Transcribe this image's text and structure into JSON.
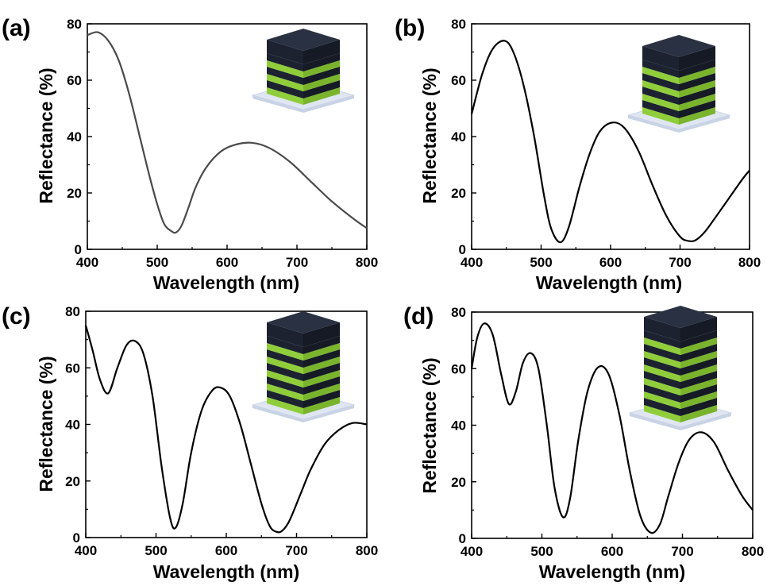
{
  "colors": {
    "curve_a": "#4a4a4a",
    "curve": "#000000",
    "stack_dark": "#1c2230",
    "stack_green": "#8fce3a",
    "substrate": "#dfe6f2"
  },
  "chart_data": [
    {
      "type": "line",
      "panel": "(a)",
      "xlabel": "Wavelength (nm)",
      "ylabel": "Reflectance (%)",
      "xlim": [
        400,
        800
      ],
      "ylim": [
        0,
        80
      ],
      "xticks": [
        "400",
        "500",
        "600",
        "700",
        "800"
      ],
      "yticks": [
        "0",
        "20",
        "40",
        "60",
        "80"
      ],
      "inset": "multilayer stack, 3 green layers",
      "layers": 3,
      "series": [
        {
          "x": [
            400,
            415,
            430,
            445,
            460,
            475,
            490,
            500,
            510,
            520,
            527,
            535,
            545,
            555,
            570,
            590,
            610,
            635,
            660,
            690,
            720,
            750,
            780,
            800
          ],
          "y": [
            76,
            77,
            74,
            67,
            55,
            40,
            25,
            16,
            9,
            6.5,
            6,
            8.5,
            15,
            22,
            29,
            34.5,
            37,
            37.8,
            36,
            31,
            24,
            17,
            11,
            7.5
          ]
        }
      ]
    },
    {
      "type": "line",
      "panel": "(b)",
      "xlabel": "Wavelength (nm)",
      "ylabel": "Reflectance (%)",
      "xlim": [
        400,
        800
      ],
      "ylim": [
        0,
        80
      ],
      "xticks": [
        "400",
        "500",
        "600",
        "700",
        "800"
      ],
      "yticks": [
        "0",
        "20",
        "40",
        "60",
        "80"
      ],
      "inset": "multilayer stack, 4 green layers",
      "layers": 4,
      "series": [
        {
          "x": [
            400,
            415,
            430,
            447,
            460,
            475,
            490,
            505,
            515,
            528,
            540,
            555,
            570,
            585,
            603,
            620,
            640,
            660,
            680,
            700,
            712,
            722,
            735,
            750,
            770,
            790,
            800
          ],
          "y": [
            48,
            62,
            71,
            74,
            70,
            58,
            40,
            18,
            7,
            2.5,
            8,
            22,
            34,
            42,
            45,
            43,
            35,
            23,
            12,
            4.5,
            3,
            3.2,
            6,
            11,
            18,
            25,
            28
          ]
        }
      ]
    },
    {
      "type": "line",
      "panel": "(c)",
      "xlabel": "Wavelength (nm)",
      "ylabel": "Reflectance (%)",
      "xlim": [
        400,
        800
      ],
      "ylim": [
        0,
        80
      ],
      "xticks": [
        "400",
        "500",
        "600",
        "700",
        "800"
      ],
      "yticks": [
        "0",
        "20",
        "40",
        "60",
        "80"
      ],
      "inset": "multilayer stack, 5 green layers",
      "layers": 5,
      "series": [
        {
          "x": [
            400,
            410,
            420,
            432,
            445,
            458,
            470,
            482,
            495,
            508,
            520,
            528,
            538,
            550,
            565,
            580,
            592,
            605,
            620,
            635,
            650,
            662,
            672,
            680,
            690,
            705,
            720,
            740,
            760,
            780,
            800
          ],
          "y": [
            75,
            66,
            56,
            51,
            60,
            68,
            69.5,
            65,
            50,
            25,
            7,
            3.5,
            12,
            30,
            45,
            52,
            53,
            50,
            40,
            26,
            12,
            4,
            2,
            2.5,
            6,
            15,
            24,
            33,
            38,
            40.5,
            40
          ]
        }
      ]
    },
    {
      "type": "line",
      "panel": "(d)",
      "xlabel": "Wavelength (nm)",
      "ylabel": "Reflectance (%)",
      "xlim": [
        400,
        800
      ],
      "ylim": [
        0,
        80
      ],
      "xticks": [
        "400",
        "500",
        "600",
        "700",
        "800"
      ],
      "yticks": [
        "0",
        "20",
        "40",
        "60",
        "80"
      ],
      "inset": "multilayer stack, 6 green layers",
      "layers": 6,
      "series": [
        {
          "x": [
            400,
            408,
            418,
            430,
            442,
            453,
            463,
            473,
            484,
            495,
            507,
            518,
            530,
            540,
            552,
            565,
            580,
            595,
            610,
            625,
            640,
            655,
            668,
            680,
            695,
            710,
            727,
            745,
            765,
            785,
            800
          ],
          "y": [
            60,
            71,
            76,
            72,
            58,
            47.5,
            52,
            62,
            65.5,
            60,
            40,
            18,
            7.5,
            14,
            35,
            52,
            60.5,
            58,
            44,
            24,
            8,
            2,
            5,
            15,
            27,
            35,
            37.5,
            34,
            24,
            15,
            10
          ]
        }
      ]
    }
  ]
}
